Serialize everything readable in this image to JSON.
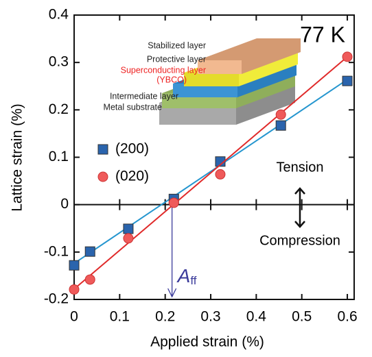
{
  "chart_data": {
    "type": "scatter",
    "x_label": "Applied strain (%)",
    "y_label": "Lattice strain (%)",
    "xlim": [
      0,
      0.615
    ],
    "ylim": [
      -0.2,
      0.4
    ],
    "xticks": [
      0,
      0.1,
      0.2,
      0.3,
      0.4,
      0.5,
      0.6
    ],
    "yticks": [
      -0.2,
      -0.1,
      0,
      0.1,
      0.2,
      0.3,
      0.4
    ],
    "series": [
      {
        "name": "(200)",
        "marker": "square",
        "color": "#2a64ad",
        "line_color": "#2596cf",
        "x": [
          0,
          0.035,
          0.119,
          0.219,
          0.321,
          0.454,
          0.6
        ],
        "values": [
          -0.128,
          -0.099,
          -0.051,
          0.012,
          0.091,
          0.167,
          0.261
        ],
        "fit_x": [
          0,
          0.6
        ],
        "fit_values": [
          -0.124,
          0.264
        ]
      },
      {
        "name": "(020)",
        "marker": "circle",
        "color": "#ef5a5a",
        "line_color": "#e02a2a",
        "x": [
          0,
          0.035,
          0.119,
          0.219,
          0.321,
          0.454,
          0.6
        ],
        "values": [
          -0.179,
          -0.158,
          -0.071,
          0.004,
          0.064,
          0.19,
          0.312
        ],
        "fit_x": [
          0,
          0.6
        ],
        "fit_values": [
          -0.178,
          0.312
        ]
      }
    ],
    "annotations": {
      "temperature": "77 K",
      "tension": "Tension",
      "compression": "Compression",
      "aff": {
        "text": "A",
        "subscript": "ff",
        "x": 0.215
      },
      "inset": [
        "Stabilized layer",
        "Protective layer",
        "Superconducting layer",
        "(YBCO)",
        "Intermediate layer",
        "Metal substrate"
      ]
    }
  }
}
